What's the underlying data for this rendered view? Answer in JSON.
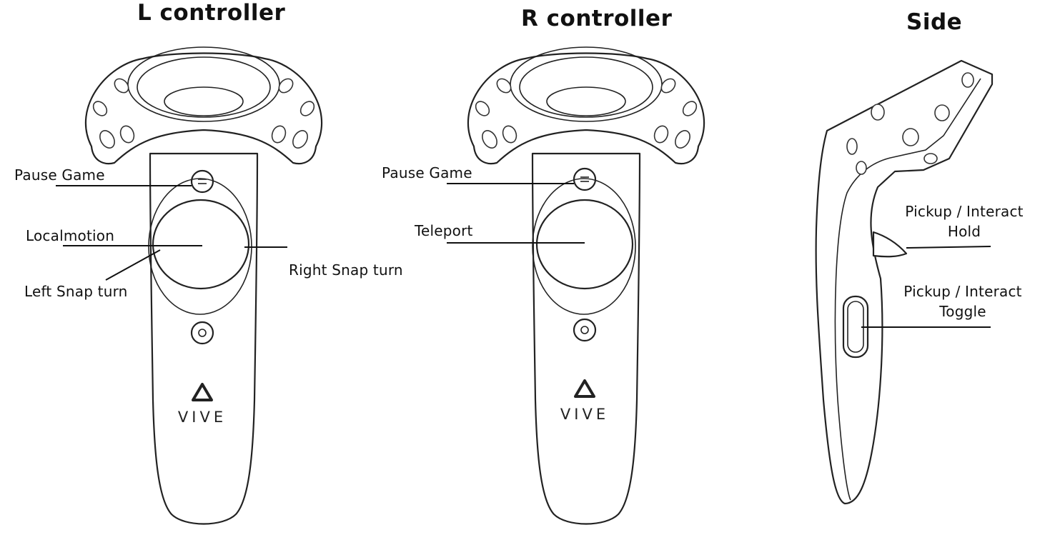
{
  "titles": {
    "left": "L controller",
    "right": "R controller",
    "side": "Side"
  },
  "controller_brand": "VIVE",
  "left_controller": {
    "pause": "Pause Game",
    "localmotion": "Localmotion",
    "left_snap": "Left Snap turn",
    "right_snap": "Right Snap turn"
  },
  "right_controller": {
    "pause": "Pause Game",
    "teleport": "Teleport"
  },
  "side_view": {
    "hold_line1": "Pickup / Interact",
    "hold_line2": "Hold",
    "toggle_line1": "Pickup / Interact",
    "toggle_line2": "Toggle"
  }
}
